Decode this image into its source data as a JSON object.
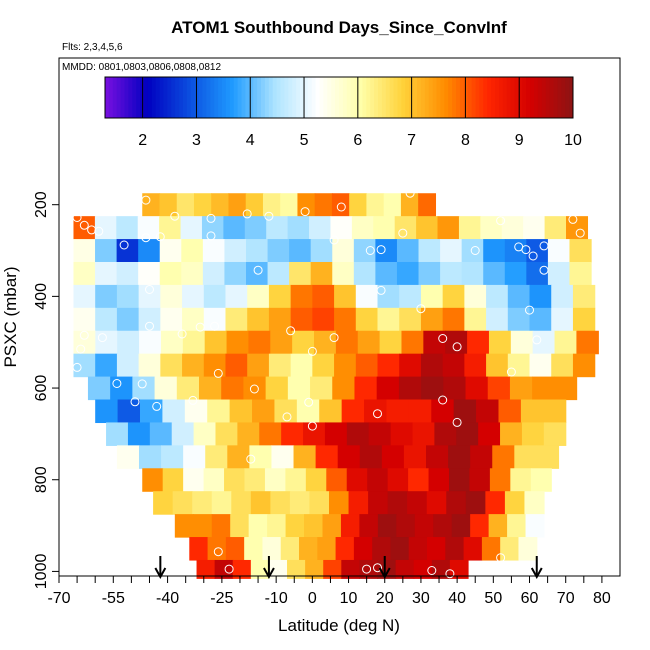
{
  "chart_data": {
    "type": "heatmap",
    "title": "ATOM1 Southbound Days_Since_ConvInf",
    "subtitle_flts": "Flts: 2,3,4,5,6",
    "subtitle_dates": "MMDD: 0801,0803,0806,0808,0812",
    "xlabel": "Latitude (deg N)",
    "ylabel": "PSXC (mbar)",
    "xlim": [
      -70,
      85
    ],
    "ylim": [
      1010,
      -120
    ],
    "x_ticks": [
      "-70",
      "-55",
      "-40",
      "-25",
      "-10",
      "0",
      "10",
      "20",
      "30",
      "40",
      "50",
      "60",
      "70",
      "80"
    ],
    "x_tick_values": [
      -70,
      -55,
      -40,
      -25,
      -10,
      0,
      10,
      20,
      30,
      40,
      50,
      60,
      70,
      80
    ],
    "x_minor_ticks": [
      -65,
      -60,
      -50,
      -45,
      -35,
      -30,
      -20,
      -15,
      -5,
      5,
      15,
      25,
      35,
      45,
      55,
      65,
      75
    ],
    "y_ticks": [
      "200",
      "400",
      "600",
      "800",
      "1000"
    ],
    "y_tick_values": [
      200,
      400,
      600,
      800,
      1000
    ],
    "colorbar": {
      "min": 1.3,
      "max": 10,
      "ticks": [
        "2",
        "3",
        "4",
        "5",
        "6",
        "7",
        "8",
        "9",
        "10"
      ],
      "tick_values": [
        2,
        3,
        4,
        5,
        6,
        7,
        8,
        9,
        10
      ],
      "colors": [
        "#7a10e0",
        "#0000c0",
        "#0b4fe0",
        "#1f9bff",
        "#aee4ff",
        "#ffffff",
        "#ffffaa",
        "#ffd23a",
        "#ff8c00",
        "#ff2600",
        "#d40000",
        "#8c1414"
      ]
    },
    "arrow_latitudes": [
      -42,
      -12,
      20,
      62
    ],
    "rows": [
      {
        "pressure": 200,
        "dp": 50,
        "lat_start": -47,
        "lat_end": 34,
        "values": [
          7.2,
          7.0,
          6.5,
          6.8,
          7.1,
          7.4,
          6.9,
          6.3,
          6.1,
          7.6,
          7.8,
          8.0,
          6.8,
          6.2,
          6.0,
          7.2,
          7.9
        ]
      },
      {
        "pressure": 250,
        "dp": 50,
        "lat_start": -66,
        "lat_end": 76,
        "values": [
          8.0,
          5.0,
          4.6,
          5.2,
          6.2,
          5.0,
          4.3,
          4.0,
          4.2,
          4.6,
          4.4,
          4.8,
          5.3,
          5.8,
          6.0,
          6.5,
          7.0,
          7.5,
          6.2,
          5.8,
          5.6,
          5.4,
          6.4,
          7.5
        ]
      },
      {
        "pressure": 300,
        "dp": 50,
        "lat_start": -66,
        "lat_end": 77,
        "values": [
          5.5,
          4.2,
          2.6,
          3.5,
          5.4,
          6.0,
          5.2,
          4.8,
          4.5,
          4.2,
          4.0,
          4.4,
          5.6,
          4.3,
          3.5,
          4.0,
          4.6,
          5.0,
          4.4,
          3.6,
          3.4,
          3.0,
          5.2,
          6.6
        ]
      },
      {
        "pressure": 350,
        "dp": 50,
        "lat_start": -66,
        "lat_end": 77,
        "values": [
          5.8,
          5.0,
          4.8,
          5.3,
          6.0,
          5.8,
          4.8,
          4.3,
          4.0,
          4.6,
          6.5,
          7.2,
          5.8,
          4.5,
          4.0,
          3.8,
          4.2,
          4.6,
          4.5,
          4.0,
          3.7,
          3.2,
          4.8,
          6.2
        ]
      },
      {
        "pressure": 400,
        "dp": 50,
        "lat_start": -66,
        "lat_end": 78,
        "values": [
          5.0,
          4.2,
          4.4,
          5.0,
          5.6,
          5.0,
          4.6,
          5.0,
          5.8,
          6.8,
          7.8,
          8.0,
          7.0,
          5.2,
          4.4,
          4.6,
          6.0,
          6.8,
          5.6,
          4.6,
          4.0,
          3.6,
          4.8,
          6.4
        ]
      },
      {
        "pressure": 450,
        "dp": 50,
        "lat_start": -66,
        "lat_end": 78,
        "values": [
          5.4,
          4.6,
          4.2,
          4.8,
          5.4,
          5.8,
          5.2,
          6.4,
          7.0,
          7.4,
          8.0,
          8.2,
          7.8,
          6.8,
          6.2,
          6.6,
          7.4,
          7.8,
          6.2,
          4.8,
          4.2,
          4.0,
          5.0,
          6.8
        ]
      },
      {
        "pressure": 500,
        "dp": 50,
        "lat_start": -66,
        "lat_end": 79,
        "values": [
          5.6,
          5.0,
          4.8,
          5.2,
          5.8,
          6.2,
          7.0,
          7.6,
          7.8,
          7.4,
          6.8,
          7.2,
          7.8,
          7.4,
          6.8,
          7.8,
          9.4,
          9.6,
          8.4,
          6.8,
          5.6,
          5.0,
          6.2,
          7.8
        ]
      },
      {
        "pressure": 550,
        "dp": 50,
        "lat_start": -66,
        "lat_end": 78,
        "values": [
          4.4,
          3.8,
          4.8,
          5.6,
          6.6,
          7.2,
          7.6,
          8.0,
          7.4,
          6.4,
          6.0,
          6.8,
          7.6,
          8.0,
          8.4,
          9.0,
          9.6,
          9.4,
          8.6,
          7.0,
          6.2,
          5.4,
          6.6,
          7.6
        ]
      },
      {
        "pressure": 600,
        "dp": 50,
        "lat_start": -62,
        "lat_end": 73,
        "values": [
          4.2,
          3.6,
          4.4,
          5.6,
          6.4,
          7.2,
          7.8,
          7.6,
          6.8,
          6.0,
          6.4,
          7.6,
          8.4,
          9.2,
          9.6,
          9.8,
          9.6,
          9.0,
          8.2,
          7.4,
          7.6,
          7.6
        ]
      },
      {
        "pressure": 650,
        "dp": 50,
        "lat_start": -60,
        "lat_end": 70,
        "values": [
          3.6,
          3.0,
          3.8,
          4.8,
          5.4,
          6.2,
          7.0,
          7.4,
          6.6,
          6.0,
          7.0,
          8.4,
          8.8,
          8.6,
          8.6,
          9.2,
          9.8,
          9.4,
          8.0,
          7.0,
          7.0
        ]
      },
      {
        "pressure": 700,
        "dp": 50,
        "lat_start": -57,
        "lat_end": 70,
        "values": [
          4.4,
          3.6,
          4.0,
          4.8,
          5.8,
          6.6,
          7.2,
          7.8,
          8.4,
          8.8,
          9.2,
          9.6,
          9.4,
          9.0,
          8.8,
          9.6,
          9.8,
          9.2,
          7.2,
          6.8,
          6.6
        ]
      },
      {
        "pressure": 750,
        "dp": 50,
        "lat_start": -54,
        "lat_end": 68,
        "values": [
          5.4,
          4.4,
          4.6,
          5.2,
          6.4,
          7.2,
          6.0,
          5.4,
          7.2,
          8.4,
          9.2,
          9.6,
          9.2,
          8.8,
          9.4,
          9.8,
          9.4,
          7.8,
          6.6,
          6.6
        ]
      },
      {
        "pressure": 800,
        "dp": 50,
        "lat_start": -47,
        "lat_end": 66,
        "values": [
          7.6,
          6.8,
          5.4,
          5.8,
          6.6,
          6.4,
          5.8,
          6.2,
          6.8,
          8.0,
          9.0,
          9.4,
          9.0,
          8.4,
          9.2,
          9.8,
          9.4,
          7.8,
          6.2,
          6.0
        ]
      },
      {
        "pressure": 850,
        "dp": 50,
        "lat_start": -44,
        "lat_end": 64,
        "values": [
          6.8,
          6.6,
          6.4,
          6.2,
          6.6,
          7.0,
          6.6,
          6.4,
          6.6,
          7.6,
          8.6,
          9.4,
          9.6,
          9.4,
          9.0,
          9.6,
          9.8,
          8.4,
          6.8,
          5.8
        ]
      },
      {
        "pressure": 900,
        "dp": 50,
        "lat_start": -38,
        "lat_end": 64,
        "values": [
          7.6,
          7.6,
          7.8,
          6.6,
          6.0,
          6.2,
          6.8,
          7.0,
          7.4,
          8.6,
          9.4,
          9.8,
          9.6,
          9.4,
          9.6,
          9.8,
          8.4,
          7.2,
          6.2,
          5.2
        ]
      },
      {
        "pressure": 950,
        "dp": 50,
        "lat_start": -34,
        "lat_end": 62,
        "values": [
          8.4,
          7.8,
          8.0,
          6.0,
          5.6,
          6.4,
          7.2,
          7.4,
          8.4,
          9.2,
          9.6,
          9.8,
          9.4,
          9.2,
          9.6,
          9.0,
          7.8,
          6.4,
          5.6
        ]
      },
      {
        "pressure": 995,
        "dp": 40,
        "lat_start": -32,
        "lat_end": 43,
        "values": [
          8.6,
          9.4,
          8.4,
          6.0,
          5.4,
          6.6,
          7.2,
          8.2,
          9.4,
          9.6,
          9.8,
          9.4,
          9.2,
          9.6,
          9.0
        ]
      }
    ],
    "observations": [
      {
        "lat": -46,
        "p": 190
      },
      {
        "lat": -38,
        "p": 225
      },
      {
        "lat": -28,
        "p": 230
      },
      {
        "lat": -18,
        "p": 220
      },
      {
        "lat": -12,
        "p": 225
      },
      {
        "lat": -2,
        "p": 215
      },
      {
        "lat": 8,
        "p": 205
      },
      {
        "lat": 27,
        "p": 175
      },
      {
        "lat": 52,
        "p": 235
      },
      {
        "lat": 72,
        "p": 232
      },
      {
        "lat": -65,
        "p": 228
      },
      {
        "lat": -63,
        "p": 245
      },
      {
        "lat": -61,
        "p": 255
      },
      {
        "lat": -59,
        "p": 258
      },
      {
        "lat": -52,
        "p": 288
      },
      {
        "lat": -46,
        "p": 272
      },
      {
        "lat": -42,
        "p": 270
      },
      {
        "lat": -28,
        "p": 268
      },
      {
        "lat": 6,
        "p": 277
      },
      {
        "lat": 16,
        "p": 300
      },
      {
        "lat": 19,
        "p": 298
      },
      {
        "lat": 25,
        "p": 262
      },
      {
        "lat": 45,
        "p": 300
      },
      {
        "lat": 57,
        "p": 292
      },
      {
        "lat": 59,
        "p": 298
      },
      {
        "lat": 61,
        "p": 312
      },
      {
        "lat": 64,
        "p": 290
      },
      {
        "lat": 74,
        "p": 262
      },
      {
        "lat": -15,
        "p": 343
      },
      {
        "lat": 64,
        "p": 343
      },
      {
        "lat": -45,
        "p": 385
      },
      {
        "lat": 19,
        "p": 387
      },
      {
        "lat": 30,
        "p": 427
      },
      {
        "lat": 60,
        "p": 430
      },
      {
        "lat": -45,
        "p": 465
      },
      {
        "lat": -36,
        "p": 482
      },
      {
        "lat": -31,
        "p": 467
      },
      {
        "lat": -27,
        "p": 465
      },
      {
        "lat": -6,
        "p": 475
      },
      {
        "lat": 6,
        "p": 490
      },
      {
        "lat": -58,
        "p": 490
      },
      {
        "lat": 62,
        "p": 495
      },
      {
        "lat": -26,
        "p": 568
      },
      {
        "lat": -16,
        "p": 602
      },
      {
        "lat": -54,
        "p": 590
      },
      {
        "lat": -47,
        "p": 591
      },
      {
        "lat": -49,
        "p": 630
      },
      {
        "lat": -43,
        "p": 640
      },
      {
        "lat": -33,
        "p": 627
      },
      {
        "lat": -1,
        "p": 631
      },
      {
        "lat": -7,
        "p": 663
      },
      {
        "lat": 0,
        "p": 683
      },
      {
        "lat": 18,
        "p": 656
      },
      {
        "lat": 40,
        "p": 675
      },
      {
        "lat": 36,
        "p": 626
      },
      {
        "lat": -17,
        "p": 755
      },
      {
        "lat": -26,
        "p": 957
      },
      {
        "lat": 52,
        "p": 970
      },
      {
        "lat": -23,
        "p": 995
      },
      {
        "lat": 15,
        "p": 995
      },
      {
        "lat": 18,
        "p": 992
      },
      {
        "lat": 33,
        "p": 998
      },
      {
        "lat": 38,
        "p": 1005
      },
      {
        "lat": 36,
        "p": 492
      },
      {
        "lat": -64,
        "p": 515
      },
      {
        "lat": 55,
        "p": 565
      },
      {
        "lat": -63,
        "p": 485
      },
      {
        "lat": 0,
        "p": 520
      },
      {
        "lat": 40,
        "p": 510
      },
      {
        "lat": -65,
        "p": 555
      }
    ]
  }
}
